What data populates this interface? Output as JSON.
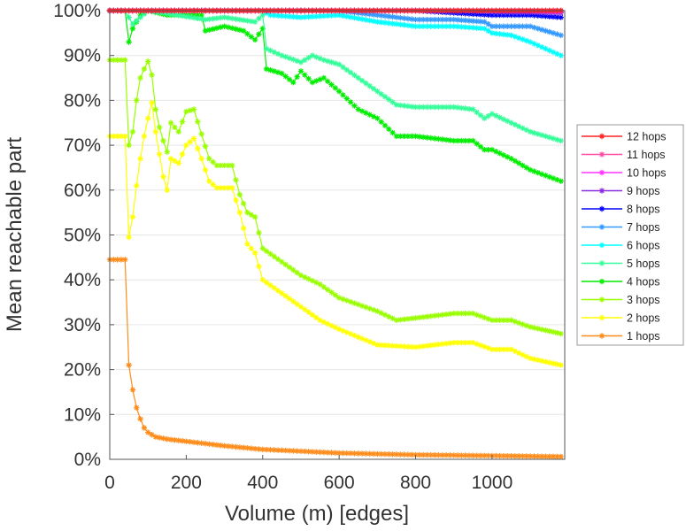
{
  "chart_data": {
    "type": "line",
    "title": "",
    "xlabel": "Volume (m) [edges]",
    "ylabel": "Mean reachable part",
    "xlim": [
      0,
      1190
    ],
    "ylim": [
      0,
      100
    ],
    "xticks": [
      "0",
      "200",
      "400",
      "600",
      "800",
      "1000"
    ],
    "xtick_values": [
      0,
      200,
      400,
      600,
      800,
      1000
    ],
    "yticks": [
      "0%",
      "10%",
      "20%",
      "30%",
      "40%",
      "50%",
      "60%",
      "70%",
      "80%",
      "90%",
      "100%"
    ],
    "ytick_values": [
      0,
      10,
      20,
      30,
      40,
      50,
      60,
      70,
      80,
      90,
      100
    ],
    "grid": "horizontal",
    "legend_position": "right",
    "series": [
      {
        "name": "12 hops",
        "color": "#ff2020",
        "points": [
          [
            0,
            100
          ],
          [
            1180,
            100
          ]
        ]
      },
      {
        "name": "11 hops",
        "color": "#ff4da6",
        "points": [
          [
            0,
            100
          ],
          [
            1180,
            100
          ]
        ]
      },
      {
        "name": "10 hops",
        "color": "#ff33ff",
        "points": [
          [
            0,
            100
          ],
          [
            1100,
            100
          ],
          [
            1180,
            99.8
          ]
        ]
      },
      {
        "name": "9 hops",
        "color": "#8a2be2",
        "points": [
          [
            0,
            100
          ],
          [
            900,
            100
          ],
          [
            1180,
            99.5
          ]
        ]
      },
      {
        "name": "8 hops",
        "color": "#0000ff",
        "points": [
          [
            0,
            100
          ],
          [
            800,
            100
          ],
          [
            900,
            99.5
          ],
          [
            1000,
            99
          ],
          [
            1100,
            99
          ],
          [
            1180,
            98.5
          ]
        ]
      },
      {
        "name": "7 hops",
        "color": "#3399ff",
        "points": [
          [
            0,
            100
          ],
          [
            600,
            100
          ],
          [
            700,
            99
          ],
          [
            800,
            98
          ],
          [
            900,
            98
          ],
          [
            980,
            97.5
          ],
          [
            1000,
            96.5
          ],
          [
            1100,
            96.5
          ],
          [
            1180,
            94.5
          ]
        ]
      },
      {
        "name": "6 hops",
        "color": "#00ffff",
        "points": [
          [
            0,
            100
          ],
          [
            400,
            100
          ],
          [
            420,
            99
          ],
          [
            500,
            98.5
          ],
          [
            600,
            99
          ],
          [
            700,
            97.5
          ],
          [
            800,
            96.5
          ],
          [
            900,
            96.5
          ],
          [
            980,
            96
          ],
          [
            1000,
            95
          ],
          [
            1050,
            94.5
          ],
          [
            1100,
            93
          ],
          [
            1180,
            90
          ]
        ]
      },
      {
        "name": "5 hops",
        "color": "#33ff99",
        "points": [
          [
            0,
            100
          ],
          [
            40,
            100
          ],
          [
            60,
            97
          ],
          [
            100,
            100
          ],
          [
            250,
            98
          ],
          [
            300,
            98.5
          ],
          [
            380,
            97.5
          ],
          [
            400,
            99
          ],
          [
            410,
            91.5
          ],
          [
            450,
            90
          ],
          [
            500,
            88.5
          ],
          [
            530,
            90
          ],
          [
            560,
            89
          ],
          [
            600,
            88
          ],
          [
            650,
            85
          ],
          [
            700,
            82
          ],
          [
            750,
            79
          ],
          [
            800,
            78.5
          ],
          [
            900,
            78.5
          ],
          [
            950,
            78
          ],
          [
            980,
            76
          ],
          [
            1000,
            77
          ],
          [
            1050,
            75
          ],
          [
            1100,
            73
          ],
          [
            1180,
            71
          ]
        ]
      },
      {
        "name": "4 hops",
        "color": "#00ee00",
        "points": [
          [
            0,
            100
          ],
          [
            40,
            100
          ],
          [
            50,
            93
          ],
          [
            60,
            96
          ],
          [
            80,
            99
          ],
          [
            100,
            100
          ],
          [
            150,
            99
          ],
          [
            200,
            99
          ],
          [
            240,
            99
          ],
          [
            250,
            95.5
          ],
          [
            300,
            96.5
          ],
          [
            350,
            95.5
          ],
          [
            380,
            93.5
          ],
          [
            400,
            96
          ],
          [
            410,
            87
          ],
          [
            450,
            86
          ],
          [
            480,
            84
          ],
          [
            500,
            86.5
          ],
          [
            530,
            84
          ],
          [
            560,
            85
          ],
          [
            600,
            82
          ],
          [
            650,
            78
          ],
          [
            700,
            76
          ],
          [
            750,
            72
          ],
          [
            800,
            72
          ],
          [
            900,
            71
          ],
          [
            950,
            71
          ],
          [
            980,
            69
          ],
          [
            1000,
            69
          ],
          [
            1050,
            67
          ],
          [
            1100,
            64.5
          ],
          [
            1180,
            62
          ]
        ]
      },
      {
        "name": "3 hops",
        "color": "#99ff00",
        "points": [
          [
            0,
            89
          ],
          [
            40,
            89
          ],
          [
            50,
            70
          ],
          [
            60,
            73
          ],
          [
            70,
            80
          ],
          [
            80,
            85
          ],
          [
            90,
            87
          ],
          [
            105,
            89.5
          ],
          [
            120,
            78
          ],
          [
            130,
            74
          ],
          [
            140,
            71
          ],
          [
            150,
            68.5
          ],
          [
            160,
            75
          ],
          [
            180,
            73
          ],
          [
            200,
            77.5
          ],
          [
            220,
            78
          ],
          [
            240,
            72.5
          ],
          [
            260,
            67
          ],
          [
            280,
            65.5
          ],
          [
            320,
            65.5
          ],
          [
            340,
            59
          ],
          [
            360,
            55
          ],
          [
            380,
            54
          ],
          [
            400,
            47
          ],
          [
            450,
            44
          ],
          [
            500,
            41
          ],
          [
            550,
            39
          ],
          [
            600,
            36
          ],
          [
            700,
            33
          ],
          [
            750,
            31
          ],
          [
            800,
            31.5
          ],
          [
            900,
            32.5
          ],
          [
            950,
            32.5
          ],
          [
            1000,
            31
          ],
          [
            1050,
            31
          ],
          [
            1100,
            29.5
          ],
          [
            1180,
            28
          ]
        ]
      },
      {
        "name": "2 hops",
        "color": "#ffff00",
        "points": [
          [
            0,
            72
          ],
          [
            40,
            72
          ],
          [
            50,
            49.5
          ],
          [
            60,
            54
          ],
          [
            70,
            61
          ],
          [
            80,
            67
          ],
          [
            90,
            72
          ],
          [
            100,
            76
          ],
          [
            110,
            79.5
          ],
          [
            120,
            73
          ],
          [
            130,
            68
          ],
          [
            140,
            63
          ],
          [
            150,
            60
          ],
          [
            160,
            67
          ],
          [
            180,
            66
          ],
          [
            200,
            70
          ],
          [
            220,
            71.5
          ],
          [
            240,
            67
          ],
          [
            260,
            62
          ],
          [
            280,
            60.5
          ],
          [
            320,
            60.5
          ],
          [
            340,
            55
          ],
          [
            360,
            48
          ],
          [
            380,
            46
          ],
          [
            400,
            40
          ],
          [
            450,
            37
          ],
          [
            500,
            34
          ],
          [
            550,
            31
          ],
          [
            600,
            29
          ],
          [
            700,
            25.5
          ],
          [
            800,
            25
          ],
          [
            900,
            26
          ],
          [
            950,
            26
          ],
          [
            1000,
            24.5
          ],
          [
            1050,
            24.5
          ],
          [
            1100,
            22.5
          ],
          [
            1180,
            21
          ]
        ]
      },
      {
        "name": "1 hops",
        "color": "#ff8c1a",
        "points": [
          [
            0,
            44.5
          ],
          [
            40,
            44.5
          ],
          [
            50,
            21
          ],
          [
            60,
            15.5
          ],
          [
            70,
            11.5
          ],
          [
            80,
            9
          ],
          [
            90,
            7
          ],
          [
            100,
            6
          ],
          [
            120,
            5
          ],
          [
            150,
            4.5
          ],
          [
            200,
            4
          ],
          [
            250,
            3.5
          ],
          [
            300,
            3
          ],
          [
            400,
            2.2
          ],
          [
            500,
            1.8
          ],
          [
            600,
            1.4
          ],
          [
            700,
            1.2
          ],
          [
            800,
            1
          ],
          [
            1000,
            0.8
          ],
          [
            1180,
            0.6
          ]
        ]
      }
    ]
  }
}
